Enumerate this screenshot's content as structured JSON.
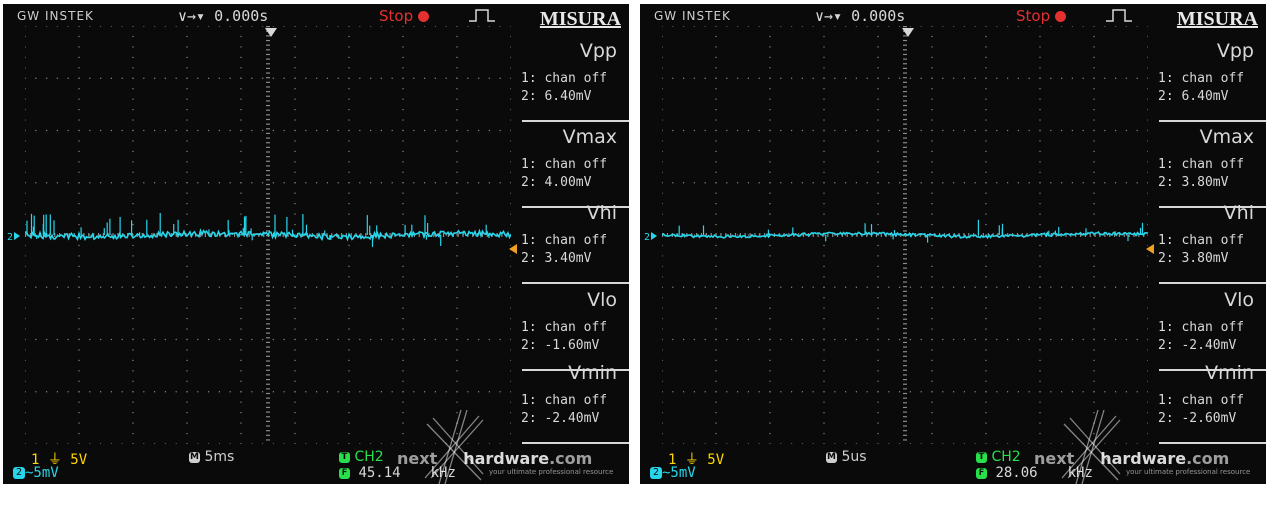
{
  "colors": {
    "screen_background": "#0a0a0a",
    "trace": "#27d6ea",
    "grid": "#8a8a8a",
    "stop": "#e53030",
    "ch1": "#ffd700",
    "trigger_info": "#27e04a",
    "text": "#d8d8d8"
  },
  "icons": {
    "run_status_dot": "red-dot-icon",
    "pulse": "pulse-waveform-icon",
    "channel_marker": "ch2-ground-marker-icon",
    "trigger_position": "trigger-position-arrow-icon",
    "trigger_level": "trigger-level-marker-icon",
    "timebase": "M-badge-icon",
    "trigger_source": "T-badge-icon",
    "frequency": "F-badge-icon",
    "watermark": "nexthardware-logo"
  },
  "screens": [
    {
      "brand": "GW INSTEK",
      "trigger_position": "∨→▾ 0.000s",
      "run_status": "Stop",
      "measure_title": "MISURA",
      "measurements": [
        {
          "name": "Vpp",
          "line1": "1: chan off",
          "line2": "2: 6.40mV"
        },
        {
          "name": "Vmax",
          "line1": "1: chan off",
          "line2": "2: 4.00mV"
        },
        {
          "name": "Vhi",
          "line1": "1: chan off",
          "line2": "2: 3.40mV"
        },
        {
          "name": "Vlo",
          "line1": "1: chan off",
          "line2": "2: -1.60mV"
        },
        {
          "name": "Vmin",
          "line1": "1: chan off",
          "line2": "2: -2.40mV"
        }
      ],
      "ch1_label": "1 ⏚ 5V",
      "ch2_label": "~5mV",
      "timebase": "5ms",
      "trigger_source": "CH2",
      "frequency": "45.14",
      "frequency_tail": "kHz",
      "watermark_prefix": "next",
      "watermark_main": "hardware",
      "watermark_suffix": ".com",
      "watermark_tagline": "your ultimate professional resource",
      "trace_style": "dense-noise"
    },
    {
      "brand": "GW INSTEK",
      "trigger_position": "∨→▾ 0.000s",
      "run_status": "Stop",
      "measure_title": "MISURA",
      "measurements": [
        {
          "name": "Vpp",
          "line1": "1: chan off",
          "line2": "2: 6.40mV"
        },
        {
          "name": "Vmax",
          "line1": "1: chan off",
          "line2": "2: 3.80mV"
        },
        {
          "name": "Vhi",
          "line1": "1: chan off",
          "line2": "2: 3.80mV"
        },
        {
          "name": "Vlo",
          "line1": "1: chan off",
          "line2": "2: -2.40mV"
        },
        {
          "name": "Vmin",
          "line1": "1: chan off",
          "line2": "2: -2.60mV"
        }
      ],
      "ch1_label": "1 ⏚ 5V",
      "ch2_label": "~5mV",
      "timebase": "5us",
      "trigger_source": "CH2",
      "frequency": "28.06",
      "frequency_tail": "kHz",
      "watermark_prefix": "next",
      "watermark_main": "hardware",
      "watermark_suffix": ".com",
      "watermark_tagline": "your ultimate professional resource",
      "trace_style": "sparse-spikes"
    }
  ]
}
